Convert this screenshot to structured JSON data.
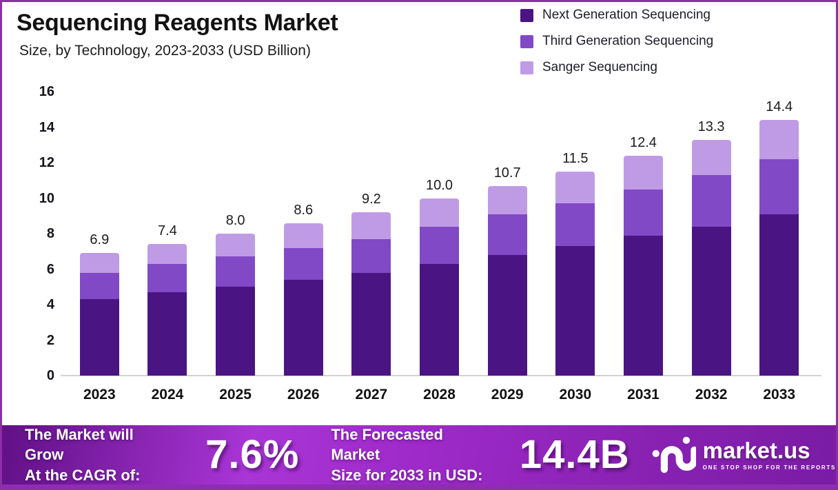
{
  "header": {
    "title": "Sequencing Reagents Market",
    "subtitle": "Size, by Technology, 2023-2033 (USD Billion)"
  },
  "legend": [
    {
      "label": "Next Generation Sequencing",
      "color": "#4A1582"
    },
    {
      "label": "Third Generation Sequencing",
      "color": "#8149C6"
    },
    {
      "label": "Sanger Sequencing",
      "color": "#C09BE5"
    }
  ],
  "chart_data": {
    "type": "bar",
    "stacked": true,
    "title": "Sequencing Reagents Market",
    "subtitle": "Size, by Technology, 2023-2033 (USD Billion)",
    "xlabel": "",
    "ylabel": "",
    "unit": "USD Billion",
    "categories": [
      "2023",
      "2024",
      "2025",
      "2026",
      "2027",
      "2028",
      "2029",
      "2030",
      "2031",
      "2032",
      "2033"
    ],
    "series": [
      {
        "name": "Next Generation Sequencing",
        "color": "#4A1582",
        "values": [
          4.3,
          4.7,
          5.0,
          5.4,
          5.8,
          6.3,
          6.8,
          7.3,
          7.9,
          8.4,
          9.1
        ]
      },
      {
        "name": "Third Generation Sequencing",
        "color": "#8149C6",
        "values": [
          1.5,
          1.6,
          1.7,
          1.8,
          1.9,
          2.1,
          2.3,
          2.4,
          2.6,
          2.9,
          3.1
        ]
      },
      {
        "name": "Sanger Sequencing",
        "color": "#C09BE5",
        "values": [
          1.1,
          1.1,
          1.3,
          1.4,
          1.5,
          1.6,
          1.6,
          1.8,
          1.9,
          2.0,
          2.2
        ]
      }
    ],
    "totals": [
      6.9,
      7.4,
      8.0,
      8.6,
      9.2,
      10.0,
      10.7,
      11.5,
      12.4,
      13.3,
      14.4
    ],
    "totals_display": [
      "6.9",
      "7.4",
      "8.0",
      "8.6",
      "9.2",
      "10.0",
      "10.7",
      "11.5",
      "12.4",
      "13.3",
      "14.4"
    ],
    "ylim": [
      0,
      16
    ],
    "yticks": [
      0,
      2,
      4,
      6,
      8,
      10,
      12,
      14,
      16
    ],
    "grid": false,
    "legend_position": "top-right"
  },
  "footer": {
    "cagr_label_line1": "The Market will Grow",
    "cagr_label_line2": "At the CAGR of:",
    "cagr_value": "7.6%",
    "forecast_label_line1": "The Forecasted Market",
    "forecast_label_line2": "Size for 2033 in USD:",
    "forecast_value": "14.4B",
    "brand": {
      "name": "market.us",
      "tagline": "ONE STOP SHOP FOR THE REPORTS"
    }
  },
  "colors": {
    "frame_border": "#8C2FA6",
    "footer_gradient_start": "#611086",
    "footer_gradient_mid": "#A935D6",
    "footer_gradient_end": "#7A1CA4",
    "footer_strip": "#8E2DB5",
    "axis_line": "#D2D2D2"
  }
}
